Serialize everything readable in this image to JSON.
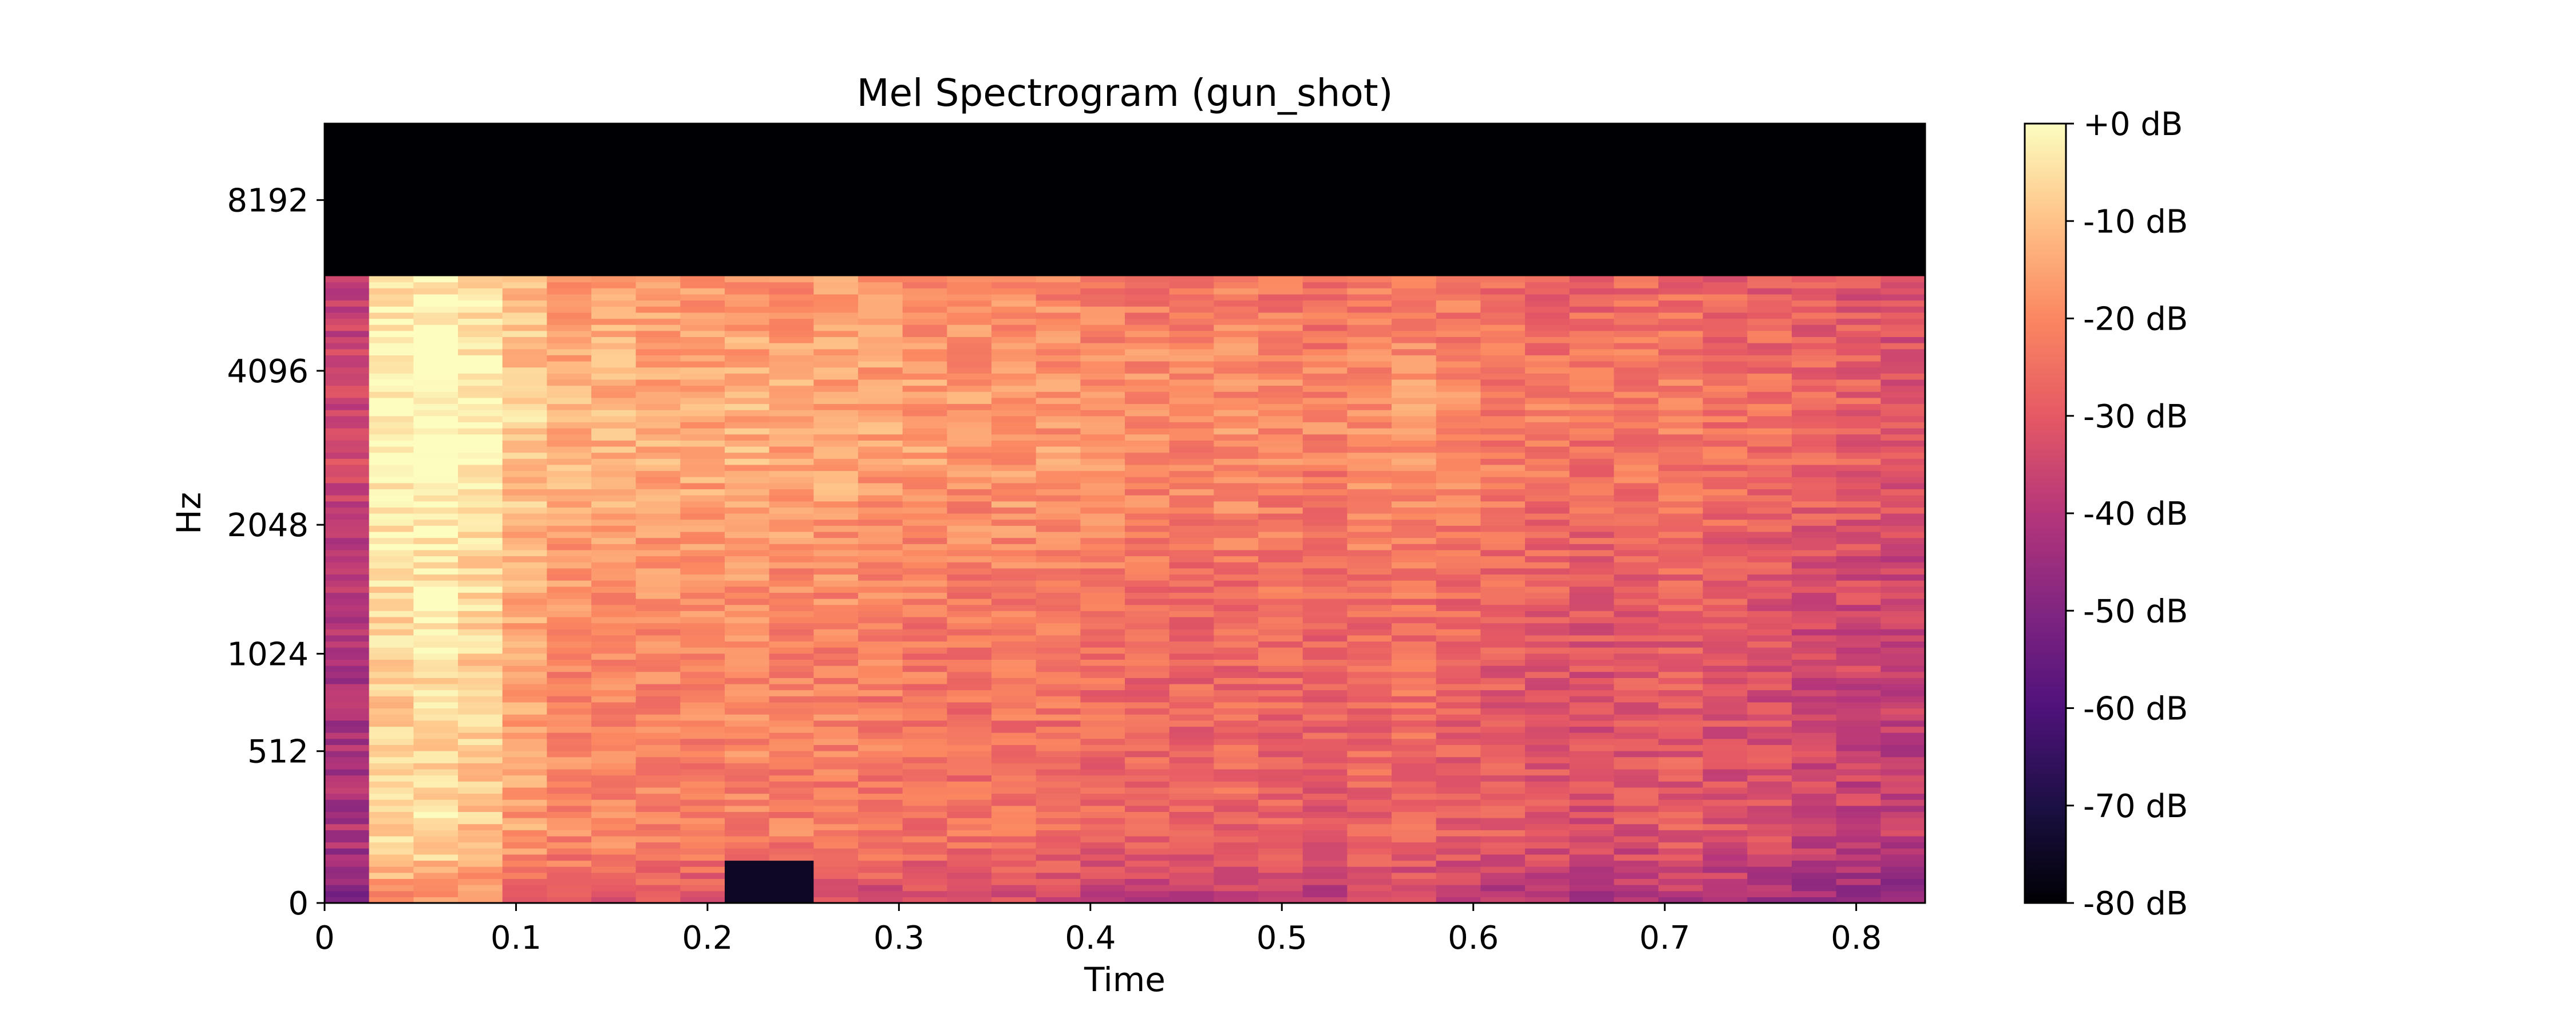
{
  "chart_data": {
    "type": "heatmap",
    "title": "Mel Spectrogram (gun_shot)",
    "xlabel": "Time",
    "ylabel": "Hz",
    "x_ticks": [
      "0",
      "0.1",
      "0.2",
      "0.3",
      "0.4",
      "0.5",
      "0.6",
      "0.7",
      "0.8"
    ],
    "y_ticks": [
      "0",
      "512",
      "1024",
      "2048",
      "4096",
      "8192"
    ],
    "y_scale": "mel",
    "xlim": [
      0,
      0.836
    ],
    "colormap": "magma",
    "colorbar": {
      "ticks": [
        "+0 dB",
        "-10 dB",
        "-20 dB",
        "-30 dB",
        "-40 dB",
        "-50 dB",
        "-60 dB",
        "-70 dB",
        "-80 dB"
      ],
      "range_db": [
        -80,
        0
      ]
    },
    "frames": 36,
    "mel_bins": 128,
    "time_columns": {
      "description": "approximate mean dB level per time column",
      "levels_db": [
        -42,
        -8,
        -6,
        -9,
        -16,
        -20,
        -20,
        -21,
        -22,
        -21,
        -22,
        -22,
        -23,
        -24,
        -25,
        -24,
        -25,
        -26,
        -27,
        -28,
        -27,
        -28,
        -29,
        -27,
        -26,
        -28,
        -30,
        -31,
        -32,
        -31,
        -30,
        -32,
        -33,
        -35,
        -36,
        -38
      ]
    },
    "low_band_dark_region": {
      "time_start": 0.21,
      "time_end": 0.26,
      "level_db": -75
    },
    "upper_cutoff_region": {
      "level_db": -80,
      "description": "silent band above ~6000 Hz"
    }
  }
}
